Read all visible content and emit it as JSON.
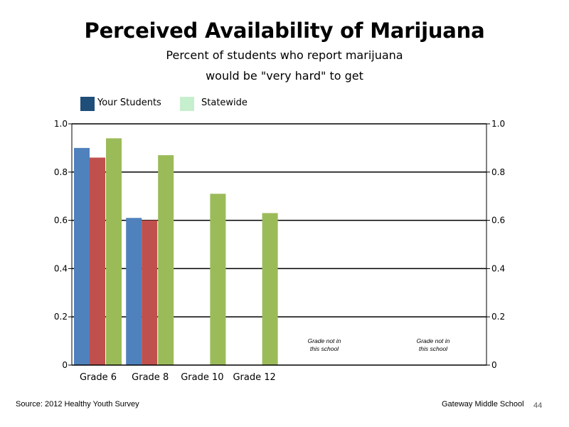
{
  "title": "Perceived Availability of Marijuana",
  "subtitle_line1": "Percent of students who report marijuana",
  "subtitle_line2": "would be \"very hard\" to get",
  "legend": [
    {
      "label": "Your Students",
      "color": "#1f4e79"
    },
    {
      "label": "Statewide",
      "color": "#c6efce"
    }
  ],
  "chart_data": {
    "type": "bar",
    "categories": [
      "Grade 6",
      "Grade 8",
      "Grade 10",
      "Grade 12",
      "",
      ""
    ],
    "series": [
      {
        "values": [
          0.9,
          0.61,
          null,
          null,
          null,
          null
        ],
        "color": "#4f81bd"
      },
      {
        "values": [
          0.86,
          0.6,
          null,
          null,
          null,
          null
        ],
        "color": "#c0504d"
      },
      {
        "name": "Statewide",
        "values": [
          0.94,
          0.87,
          0.71,
          0.63,
          null,
          null
        ],
        "color": "#9bbb59"
      }
    ],
    "ylim": [
      0,
      1.0
    ],
    "yticks": [
      "0",
      "0.2",
      "0.4",
      "0.6",
      "0.8",
      "1.0"
    ],
    "grid": true,
    "annotations": [
      {
        "category_index": 4,
        "lines": [
          "Grade not in",
          "this school"
        ]
      },
      {
        "category_index": 5,
        "lines": [
          "Grade not in",
          "this school"
        ]
      }
    ]
  },
  "footer": {
    "source": "Source: 2012 Healthy Youth Survey",
    "school": "Gateway Middle  School",
    "page": "44"
  }
}
